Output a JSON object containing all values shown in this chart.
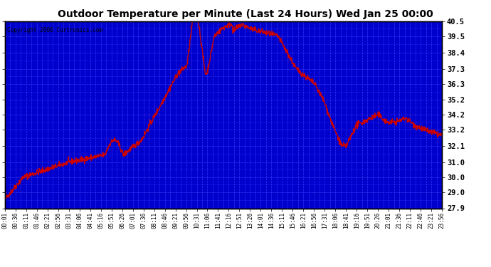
{
  "title": "Outdoor Temperature per Minute (Last 24 Hours) Wed Jan 25 00:00",
  "copyright": "Copyright 2006 Curtronics.com",
  "ylabel_right_ticks": [
    40.5,
    39.5,
    38.4,
    37.3,
    36.3,
    35.2,
    34.2,
    33.2,
    32.1,
    31.0,
    30.0,
    29.0,
    27.9
  ],
  "ymin": 27.9,
  "ymax": 40.5,
  "line_color": "#cc0000",
  "bg_color": "#0000cc",
  "x_labels": [
    "00:01",
    "00:36",
    "01:11",
    "01:46",
    "02:21",
    "02:56",
    "03:31",
    "04:06",
    "04:41",
    "05:16",
    "05:51",
    "06:26",
    "07:01",
    "07:36",
    "08:11",
    "08:46",
    "09:21",
    "09:56",
    "10:31",
    "11:06",
    "11:41",
    "12:16",
    "12:51",
    "13:26",
    "14:01",
    "14:36",
    "15:11",
    "15:46",
    "16:21",
    "16:56",
    "17:31",
    "18:06",
    "18:41",
    "19:16",
    "19:51",
    "20:26",
    "21:01",
    "21:36",
    "22:11",
    "22:46",
    "23:21",
    "23:56"
  ]
}
